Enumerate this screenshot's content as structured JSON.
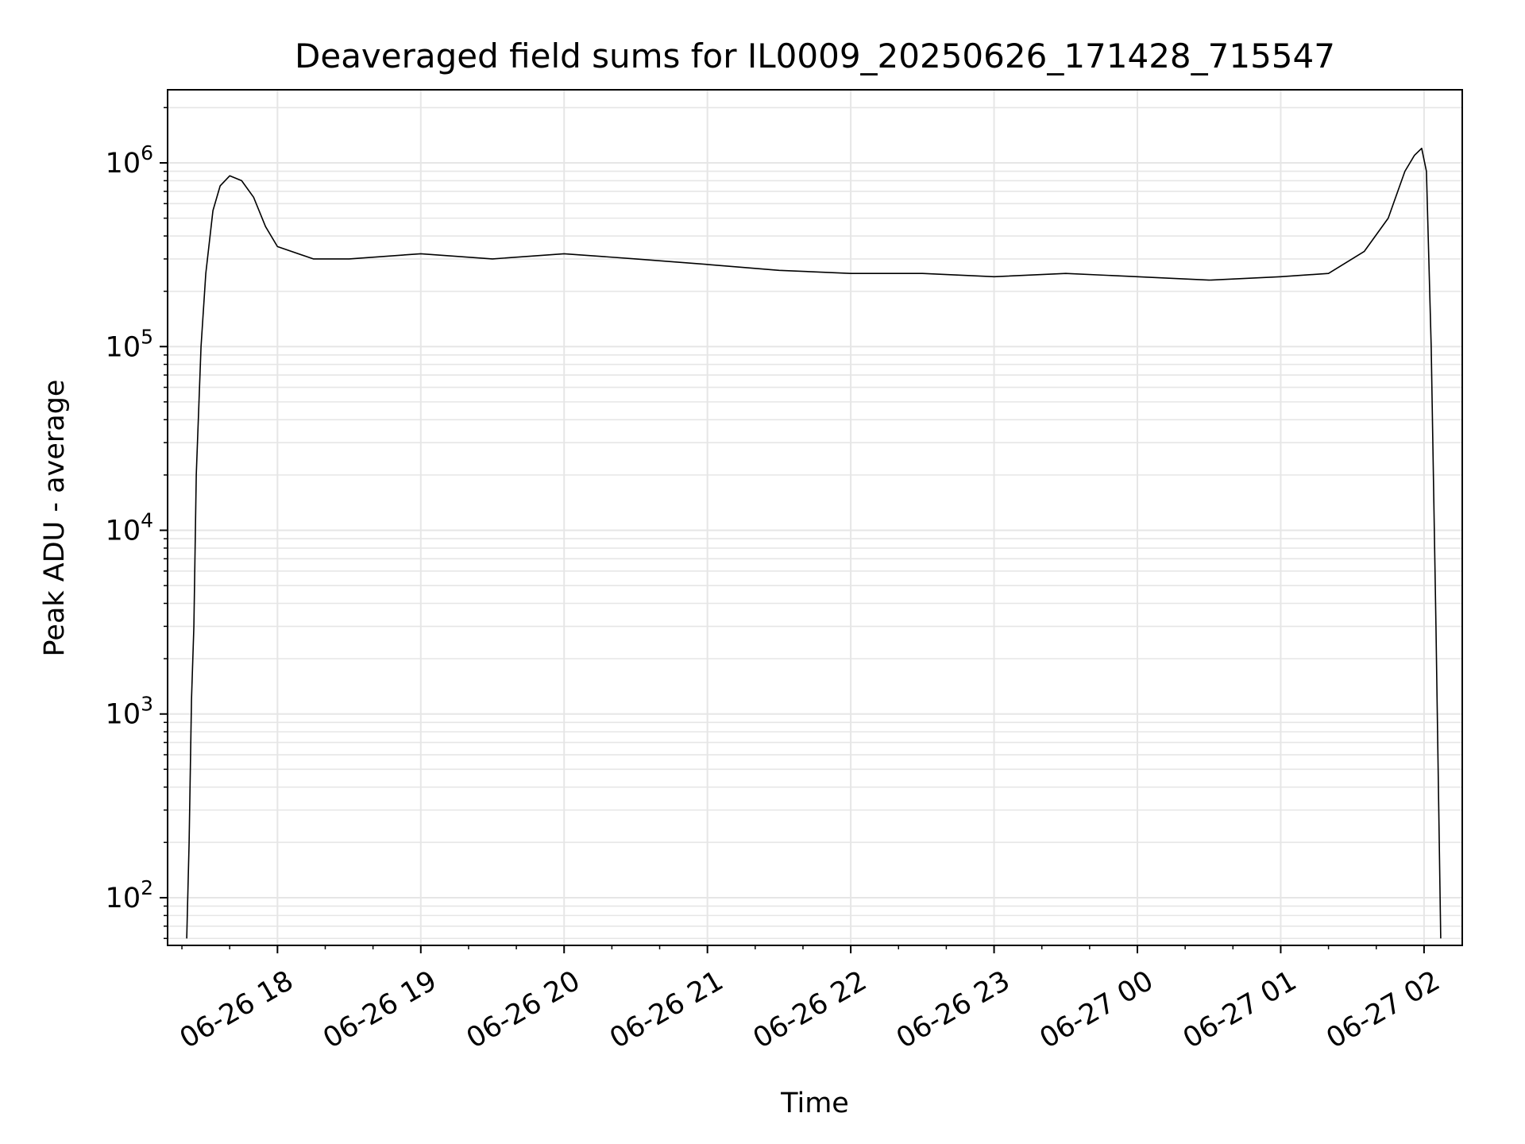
{
  "chart_data": {
    "type": "line",
    "title": "Deaveraged field sums for IL0009_20250626_171428_715547",
    "xlabel": "Time",
    "ylabel": "Peak ADU - average",
    "yscale": "log",
    "xlim": [
      "2025-06-26 17:14",
      "2025-06-27 02:16"
    ],
    "ylim": [
      55,
      2500000
    ],
    "grid": true,
    "line_color": "#000000",
    "x_ticks": [
      "2025-06-26 18:00",
      "2025-06-26 19:00",
      "2025-06-26 20:00",
      "2025-06-26 21:00",
      "2025-06-26 22:00",
      "2025-06-26 23:00",
      "2025-06-27 00:00",
      "2025-06-27 01:00",
      "2025-06-27 02:00"
    ],
    "x_tick_labels": [
      "06-26 18",
      "06-26 19",
      "06-26 20",
      "06-26 21",
      "06-26 22",
      "06-26 23",
      "06-27 00",
      "06-27 01",
      "06-27 02"
    ],
    "y_ticks": [
      100,
      1000,
      10000,
      100000,
      1000000
    ],
    "y_tick_labels": [
      {
        "base": "10",
        "exp": "2"
      },
      {
        "base": "10",
        "exp": "3"
      },
      {
        "base": "10",
        "exp": "4"
      },
      {
        "base": "10",
        "exp": "5"
      },
      {
        "base": "10",
        "exp": "6"
      }
    ],
    "series": [
      {
        "x": [
          "2025-06-26 17:22",
          "2025-06-26 17:23",
          "2025-06-26 17:24",
          "2025-06-26 17:25",
          "2025-06-26 17:26",
          "2025-06-26 17:28",
          "2025-06-26 17:30",
          "2025-06-26 17:33",
          "2025-06-26 17:36",
          "2025-06-26 17:40",
          "2025-06-26 17:45",
          "2025-06-26 17:50",
          "2025-06-26 17:55",
          "2025-06-26 18:00",
          "2025-06-26 18:15",
          "2025-06-26 18:30",
          "2025-06-26 19:00",
          "2025-06-26 19:30",
          "2025-06-26 20:00",
          "2025-06-26 20:30",
          "2025-06-26 21:00",
          "2025-06-26 21:30",
          "2025-06-26 22:00",
          "2025-06-26 22:30",
          "2025-06-26 23:00",
          "2025-06-26 23:30",
          "2025-06-27 00:00",
          "2025-06-27 00:30",
          "2025-06-27 01:00",
          "2025-06-27 01:20",
          "2025-06-27 01:35",
          "2025-06-27 01:45",
          "2025-06-27 01:52",
          "2025-06-27 01:56",
          "2025-06-27 01:59",
          "2025-06-27 02:01",
          "2025-06-27 02:03",
          "2025-06-27 02:05",
          "2025-06-27 02:07"
        ],
        "y": [
          60,
          200,
          1200,
          3000,
          20000,
          100000,
          250000,
          550000,
          750000,
          850000,
          800000,
          650000,
          450000,
          350000,
          300000,
          300000,
          320000,
          300000,
          320000,
          300000,
          280000,
          260000,
          250000,
          250000,
          240000,
          250000,
          240000,
          230000,
          240000,
          250000,
          330000,
          500000,
          900000,
          1100000,
          1200000,
          900000,
          100000,
          3000,
          60
        ]
      }
    ]
  }
}
